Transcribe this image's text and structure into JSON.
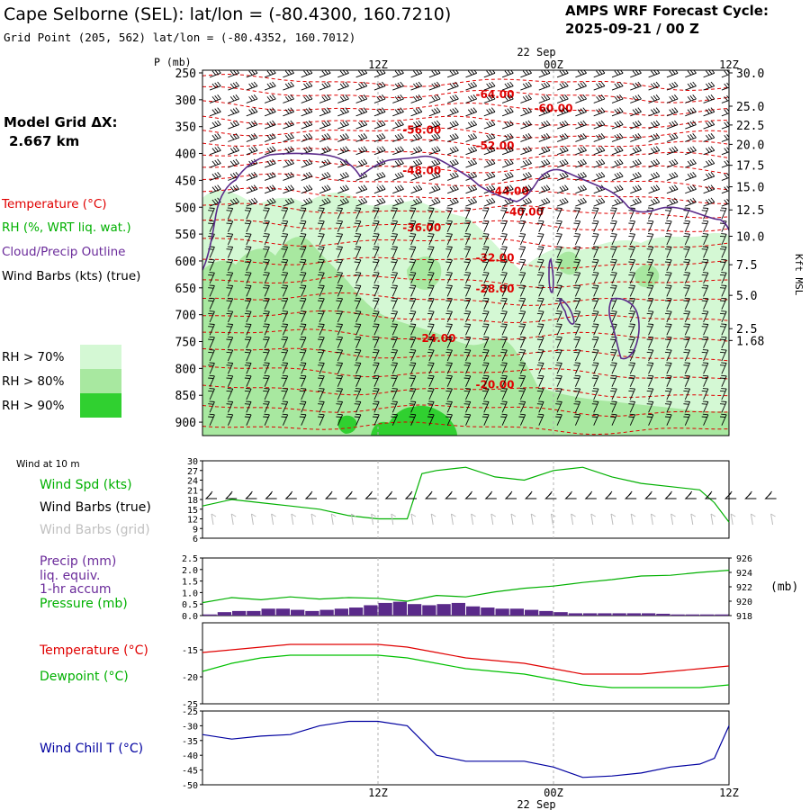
{
  "header": {
    "title": "Cape Selborne (SEL):  lat/lon = (-80.4300, 160.7210)",
    "subtitle": "Grid Point (205, 562) lat/lon = (-80.4352, 160.7012)",
    "cycle_line1": "AMPS WRF Forecast Cycle:",
    "cycle_line2": "2025-09-21 / 00  Z"
  },
  "model_grid": {
    "label": "Model Grid ΔX:",
    "value": "2.667 km"
  },
  "time_axis": {
    "date_label": "22 Sep",
    "ticks": [
      "12Z",
      "00Z",
      "12Z"
    ],
    "tick_hours": [
      12,
      24,
      36
    ],
    "range_hours": [
      0,
      36
    ]
  },
  "upper_legend": {
    "temperature": "Temperature (°C)",
    "rh": "RH (%, WRT liq. wat.)",
    "cloud": "Cloud/Precip Outline",
    "wind": "Wind Barbs (kts) (true)",
    "rh70": "RH > 70%",
    "rh80": "RH > 80%",
    "rh90": "RH > 90%"
  },
  "lower_labels": {
    "wind_title": "Wind at 10 m",
    "wind_spd": "Wind Spd (kts)",
    "barbs_true": "Wind Barbs (true)",
    "barbs_grid": "Wind Barbs (grid)",
    "precip_line1": "Precip (mm)",
    "precip_line2": "liq. equiv.",
    "precip_line3": "1-hr accum",
    "pressure": "Pressure (mb)",
    "pressure_unit": "(mb)",
    "temperature": "Temperature (°C)",
    "dewpoint": "Dewpoint (°C)",
    "windchill": "Wind Chill T (°C)"
  },
  "colors": {
    "temperature": "#e00000",
    "dewpoint": "#00c000",
    "cloud": "#5a2a8a",
    "rh70": "#d4f8d4",
    "rh80": "#a8e8a0",
    "rh90": "#30d030",
    "windchill": "#0000a0",
    "precip": "#5a2a8a",
    "wind": "#00b000",
    "pressure": "#00b000",
    "grid": "#b0b0b0"
  },
  "chart_data": [
    {
      "type": "contour",
      "name": "time-height cross section",
      "pressure_axis": {
        "label": "P (mb)",
        "ticks": [
          250,
          300,
          350,
          400,
          450,
          500,
          550,
          600,
          650,
          700,
          750,
          800,
          850,
          900
        ],
        "range": [
          245,
          925
        ]
      },
      "height_axis": {
        "label": "Kft MSL",
        "ticks": [
          {
            "label": "30.0",
            "p": 250
          },
          {
            "label": "25.0",
            "p": 312
          },
          {
            "label": "22.5",
            "p": 347
          },
          {
            "label": "20.0",
            "p": 383
          },
          {
            "label": "17.5",
            "p": 422
          },
          {
            "label": "15.0",
            "p": 462
          },
          {
            "label": "12.5",
            "p": 505
          },
          {
            "label": "10.0",
            "p": 554
          },
          {
            "label": "7.5",
            "p": 607
          },
          {
            "label": "5.0",
            "p": 664
          },
          {
            "label": "2.5",
            "p": 726
          },
          {
            "label": "1.68",
            "p": 748
          }
        ]
      },
      "temperature_labels": [
        {
          "label": "-64.00",
          "hour": 20,
          "p": 290
        },
        {
          "label": "-60.00",
          "hour": 24,
          "p": 316
        },
        {
          "label": "-56.00",
          "hour": 15,
          "p": 356
        },
        {
          "label": "-52.00",
          "hour": 20,
          "p": 386
        },
        {
          "label": "-48.00",
          "hour": 15,
          "p": 432
        },
        {
          "label": "-44.00",
          "hour": 21,
          "p": 470
        },
        {
          "label": "-40.00",
          "hour": 22,
          "p": 509
        },
        {
          "label": "-36.00",
          "hour": 15,
          "p": 538
        },
        {
          "label": "-32.00",
          "hour": 20,
          "p": 594
        },
        {
          "label": "-28.00",
          "hour": 20,
          "p": 652
        },
        {
          "label": "-24.00",
          "hour": 16,
          "p": 744
        },
        {
          "label": "-20.00",
          "hour": 20,
          "p": 830
        }
      ]
    },
    {
      "type": "line",
      "name": "Wind Spd (kts)",
      "ylim": [
        6,
        30
      ],
      "yticks": [
        6,
        9,
        12,
        15,
        18,
        21,
        24,
        27,
        30
      ],
      "x": [
        0,
        2,
        4,
        6,
        8,
        10,
        12,
        14,
        15,
        16,
        18,
        20,
        22,
        24,
        26,
        28,
        30,
        32,
        34,
        35,
        36
      ],
      "values": [
        16,
        18,
        17,
        16,
        15,
        13,
        12,
        12,
        26,
        27,
        28,
        25,
        24,
        27,
        28,
        25,
        23,
        22,
        21,
        17,
        11
      ]
    },
    {
      "type": "bar",
      "name": "Precip (mm)",
      "ylim": [
        0,
        2.5
      ],
      "yticks": [
        "0.0",
        "0.5",
        "1.0",
        "1.5",
        "2.0",
        "2.5"
      ],
      "x": [
        0,
        1,
        2,
        3,
        4,
        5,
        6,
        7,
        8,
        9,
        10,
        11,
        12,
        13,
        14,
        15,
        16,
        17,
        18,
        19,
        20,
        21,
        22,
        23,
        24,
        25,
        26,
        27,
        28,
        29,
        30,
        31,
        32,
        33,
        34,
        35
      ],
      "values": [
        0.05,
        0.15,
        0.2,
        0.2,
        0.3,
        0.3,
        0.25,
        0.2,
        0.25,
        0.3,
        0.35,
        0.45,
        0.55,
        0.6,
        0.5,
        0.45,
        0.5,
        0.55,
        0.4,
        0.35,
        0.3,
        0.3,
        0.25,
        0.2,
        0.15,
        0.1,
        0.1,
        0.1,
        0.1,
        0.1,
        0.1,
        0.08,
        0.05,
        0.05,
        0.05,
        0.05
      ]
    },
    {
      "type": "line",
      "name": "Pressure (mb)",
      "ylim": [
        918,
        926
      ],
      "yticks": [
        918,
        920,
        922,
        924,
        926
      ],
      "x": [
        0,
        2,
        4,
        6,
        8,
        10,
        12,
        14,
        16,
        18,
        20,
        22,
        24,
        26,
        28,
        30,
        32,
        34,
        36
      ],
      "values": [
        919.8,
        920.5,
        920.2,
        920.6,
        920.3,
        920.5,
        920.4,
        920.0,
        920.8,
        920.6,
        921.3,
        921.8,
        922.1,
        922.6,
        923.0,
        923.5,
        923.6,
        924.0,
        924.3
      ]
    },
    {
      "type": "line",
      "name": "Temperature / Dewpoint",
      "ylim": [
        -25,
        -10
      ],
      "yticks": [
        -25,
        -20,
        -15
      ],
      "x": [
        0,
        2,
        4,
        6,
        8,
        10,
        12,
        14,
        16,
        18,
        20,
        22,
        24,
        26,
        28,
        30,
        32,
        34,
        36
      ],
      "series": [
        {
          "name": "Temperature (°C)",
          "values": [
            -15.5,
            -15,
            -14.5,
            -14,
            -14,
            -14,
            -14,
            -14.5,
            -15.5,
            -16.5,
            -17,
            -17.5,
            -18.5,
            -19.5,
            -19.5,
            -19.5,
            -19,
            -18.5,
            -18
          ]
        },
        {
          "name": "Dewpoint (°C)",
          "values": [
            -19,
            -17.5,
            -16.5,
            -16,
            -16,
            -16,
            -16,
            -16.5,
            -17.5,
            -18.5,
            -19,
            -19.5,
            -20.5,
            -21.5,
            -22,
            -22,
            -22,
            -22,
            -21.5
          ]
        }
      ]
    },
    {
      "type": "line",
      "name": "Wind Chill T (°C)",
      "ylim": [
        -50,
        -25
      ],
      "yticks": [
        -50,
        -45,
        -40,
        -35,
        -30,
        -25
      ],
      "x": [
        0,
        2,
        4,
        6,
        8,
        10,
        12,
        14,
        16,
        18,
        20,
        22,
        24,
        26,
        28,
        30,
        32,
        34,
        35,
        36
      ],
      "values": [
        -33,
        -34.5,
        -33.5,
        -33,
        -30,
        -28.5,
        -28.5,
        -30,
        -40,
        -42,
        -42,
        -42,
        -44,
        -47.5,
        -47,
        -46,
        -44,
        -43,
        -41,
        -30
      ]
    }
  ]
}
